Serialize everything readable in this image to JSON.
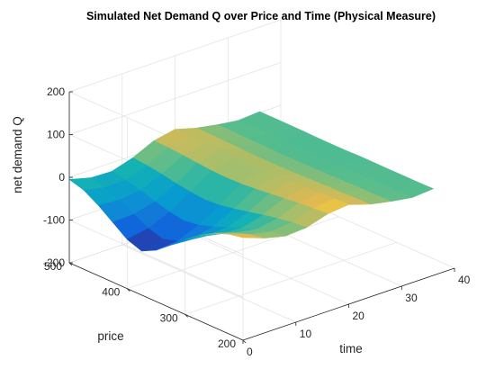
{
  "chart_data": {
    "type": "surface",
    "title": "Simulated Net Demand Q over Price and Time (Physical Measure)",
    "xlabel": "time",
    "ylabel": "price",
    "zlabel": "net demand Q",
    "xlim": [
      0,
      40
    ],
    "ylim": [
      200,
      500
    ],
    "zlim": [
      -200,
      200
    ],
    "xticks": [
      "0",
      "10",
      "20",
      "30",
      "40"
    ],
    "yticks": [
      "200",
      "300",
      "400",
      "500"
    ],
    "zticks": [
      "-200",
      "-100",
      "0",
      "100",
      "200"
    ],
    "grid": true,
    "colormap": "parula",
    "time": [
      0,
      4,
      8,
      12,
      16,
      20,
      24,
      28,
      32,
      36
    ],
    "price": [
      200,
      225,
      250,
      275,
      300,
      325,
      350,
      375,
      400,
      425,
      450,
      475,
      500
    ],
    "q_price_profile": [
      [
        45,
        38,
        25,
        5,
        -20,
        -48,
        -75,
        -92,
        -80,
        -55,
        -30,
        -10,
        0
      ],
      [
        40,
        33,
        22,
        5,
        -15,
        -38,
        -58,
        -68,
        -58,
        -40,
        -22,
        -8,
        0
      ],
      [
        30,
        25,
        15,
        3,
        -10,
        -24,
        -35,
        -40,
        -35,
        -25,
        -14,
        -5,
        0
      ],
      [
        18,
        15,
        9,
        2,
        -6,
        -14,
        -20,
        -23,
        -20,
        -15,
        -8,
        -3,
        0
      ],
      [
        10,
        8,
        5,
        1,
        -3,
        -7,
        -10,
        -11,
        -10,
        -7,
        -4,
        -1,
        0
      ],
      [
        5,
        4,
        2,
        0,
        -2,
        -4,
        -5,
        -6,
        -5,
        -4,
        -2,
        -1,
        0
      ],
      [
        3,
        2,
        1,
        0,
        -1,
        -2,
        -3,
        -3,
        -3,
        -2,
        -1,
        0,
        0
      ],
      [
        2,
        1,
        1,
        0,
        -1,
        -1,
        -2,
        -2,
        -2,
        -1,
        -1,
        0,
        0
      ],
      [
        1,
        1,
        0,
        0,
        0,
        -1,
        -1,
        -1,
        -1,
        -1,
        0,
        0,
        0
      ],
      [
        1,
        0,
        0,
        0,
        0,
        0,
        -1,
        -1,
        -1,
        0,
        0,
        0,
        0
      ]
    ],
    "q_trend": [
      -5,
      -18,
      -20,
      -5,
      18,
      28,
      14,
      5,
      -2,
      2
    ]
  }
}
